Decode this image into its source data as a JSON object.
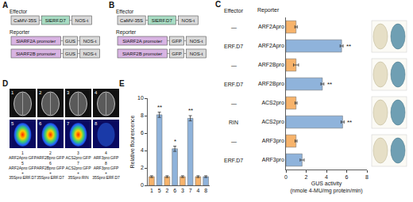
{
  "panels": {
    "A": {
      "letter": "A",
      "effector": {
        "title": "Effector",
        "parts": [
          {
            "text": "CaMV-35S",
            "color": "#d9d9d9"
          },
          {
            "text": "SlERF.D7",
            "color": "#a8dcc3"
          },
          {
            "text": "NOS-t",
            "color": "#d9d9d9"
          }
        ]
      },
      "reporter": {
        "title": "Reporter",
        "rows": [
          [
            {
              "text": "SlARF2A promoter",
              "color": "#d8b4e2"
            },
            {
              "text": "GUS",
              "color": "#d9d9d9"
            },
            {
              "text": "NOS-t",
              "color": "#d9d9d9"
            }
          ],
          [
            {
              "text": "SlARF2B promoter",
              "color": "#d8b4e2"
            },
            {
              "text": "GUS",
              "color": "#d9d9d9"
            },
            {
              "text": "NOS-t",
              "color": "#d9d9d9"
            }
          ]
        ]
      }
    },
    "B": {
      "letter": "B",
      "effector": {
        "title": "Effector",
        "parts": [
          {
            "text": "CaMV-35S",
            "color": "#d9d9d9"
          },
          {
            "text": "SlERF.D7",
            "color": "#a8dcc3"
          },
          {
            "text": "NOS-t",
            "color": "#d9d9d9"
          }
        ]
      },
      "reporter": {
        "title": "Reporter",
        "rows": [
          [
            {
              "text": "SlARF2A promoter",
              "color": "#d8b4e2"
            },
            {
              "text": "GFP",
              "color": "#d9d9d9"
            },
            {
              "text": "NOS-t",
              "color": "#d9d9d9"
            }
          ],
          [
            {
              "text": "SlARF2B promoter",
              "color": "#d8b4e2"
            },
            {
              "text": "GFP",
              "color": "#d9d9d9"
            },
            {
              "text": "NOS-t",
              "color": "#d9d9d9"
            }
          ]
        ]
      }
    },
    "D": {
      "letter": "D",
      "images": [
        {
          "number": "1",
          "label": [
            "ARF2Apro:GFP"
          ]
        },
        {
          "number": "2",
          "label": [
            "ARF2Bpro:GFP"
          ]
        },
        {
          "number": "3",
          "label": [
            "ACS2pro:GFP"
          ]
        },
        {
          "number": "4",
          "label": [
            "ARF3pro:GFP"
          ]
        },
        {
          "number": "5",
          "label": [
            "ARF2Apro:GFP",
            "+",
            "35Spro:ERF.D7"
          ]
        },
        {
          "number": "6",
          "label": [
            "ARF2Bpro:GFP",
            "+",
            "35Spro:ERF.D7"
          ]
        },
        {
          "number": "7",
          "label": [
            "ACS2pro:GFP",
            "+",
            "35Spro:RIN"
          ]
        },
        {
          "number": "8",
          "label": [
            "ARF3pro:GFP",
            "+",
            "35Spro:ERF.D7"
          ]
        }
      ]
    }
  },
  "chart_data": [
    {
      "letter": "C",
      "type": "bar",
      "orientation": "horizontal",
      "headers": [
        "Effector",
        "Reporter"
      ],
      "effectors": [
        "—",
        "ERF.D7",
        "—",
        "ERF.D7",
        "—",
        "RIN",
        "—",
        "ERF.D7"
      ],
      "categories": [
        "ARF2Apro",
        "ARF2Apro",
        "ARF2Bpro",
        "ARF2Bpro",
        "ACS2pro",
        "ACS2pro",
        "ARF3pro",
        "ARF3pro"
      ],
      "values": [
        1.0,
        5.5,
        1.0,
        3.6,
        1.0,
        5.6,
        1.0,
        1.6
      ],
      "errors": [
        0.12,
        0.15,
        0.25,
        0.15,
        0.1,
        0.15,
        0.1,
        0.2
      ],
      "significance": [
        null,
        "**",
        null,
        "**",
        null,
        "**",
        null,
        null
      ],
      "colors": [
        "#f7b36b",
        "#8fb3db",
        "#f7b36b",
        "#8fb3db",
        "#f7b36b",
        "#8fb3db",
        "#f7b36b",
        "#8fb3db"
      ],
      "xlabel": "GUS activity (nmole 4-MU/mg protein/min)",
      "xlim": [
        0,
        8
      ],
      "xticks": [
        0,
        2,
        4,
        6,
        8
      ],
      "grid": false
    },
    {
      "letter": "E",
      "type": "bar",
      "categories": [
        "1",
        "5",
        "2",
        "6",
        "3",
        "7",
        "4",
        "8"
      ],
      "values": [
        1.0,
        8.1,
        1.0,
        4.2,
        1.0,
        7.7,
        1.0,
        1.0
      ],
      "errors": [
        0.1,
        0.3,
        0.1,
        0.3,
        0.1,
        0.3,
        0.1,
        0.1
      ],
      "significance": [
        null,
        "**",
        null,
        "*",
        null,
        "**",
        null,
        null
      ],
      "colors": [
        "#f7b36b",
        "#8fb3db",
        "#f7b36b",
        "#8fb3db",
        "#f7b36b",
        "#8fb3db",
        "#f7b36b",
        "#8fb3db"
      ],
      "ylabel": "Relative flourescence",
      "ylim": [
        0,
        10
      ],
      "yticks": [
        0,
        2,
        4,
        6,
        8,
        10
      ],
      "grid": false
    }
  ]
}
